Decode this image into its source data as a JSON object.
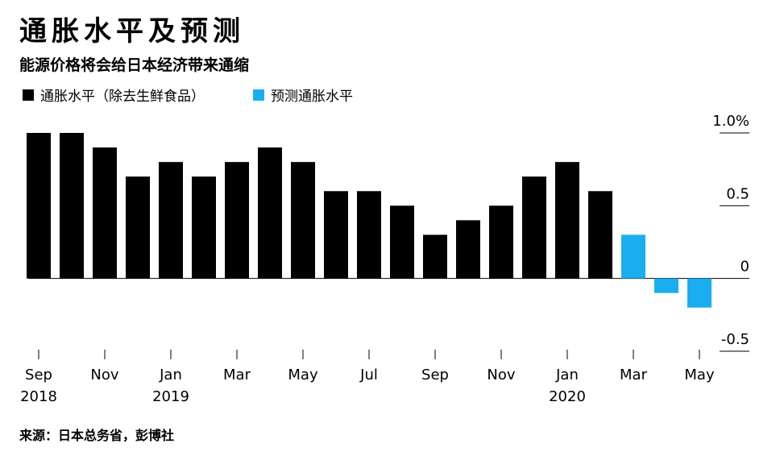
{
  "chart_data": {
    "type": "bar",
    "title": "通胀水平及预测",
    "subtitle": "能源价格将会给日本经济带来通缩",
    "source": "来源：日本总务省，彭博社",
    "categories": [
      "Sep 2018",
      null,
      "Nov",
      null,
      "Jan 2019",
      null,
      "Mar",
      null,
      "May",
      null,
      "Jul",
      null,
      "Sep",
      null,
      "Nov",
      null,
      "Jan 2020",
      null,
      "Mar",
      null,
      "May"
    ],
    "series": [
      {
        "name": "通胀水平（除去生鲜食品）",
        "color": "#000000",
        "values": [
          1.0,
          1.0,
          0.9,
          0.7,
          0.8,
          0.7,
          0.8,
          0.9,
          0.8,
          0.6,
          0.6,
          0.5,
          0.3,
          0.4,
          0.5,
          0.7,
          0.8,
          0.6,
          null,
          null,
          null
        ]
      },
      {
        "name": "预测通胀水平",
        "color": "#1aaef0",
        "values": [
          null,
          null,
          null,
          null,
          null,
          null,
          null,
          null,
          null,
          null,
          null,
          null,
          null,
          null,
          null,
          null,
          null,
          null,
          0.3,
          -0.1,
          -0.2
        ]
      }
    ],
    "ylim": [
      -0.5,
      1.0
    ],
    "yticks": [
      {
        "value": 1.0,
        "label": "1.0%"
      },
      0.5,
      0,
      -0.5
    ],
    "legend": "top-left"
  }
}
